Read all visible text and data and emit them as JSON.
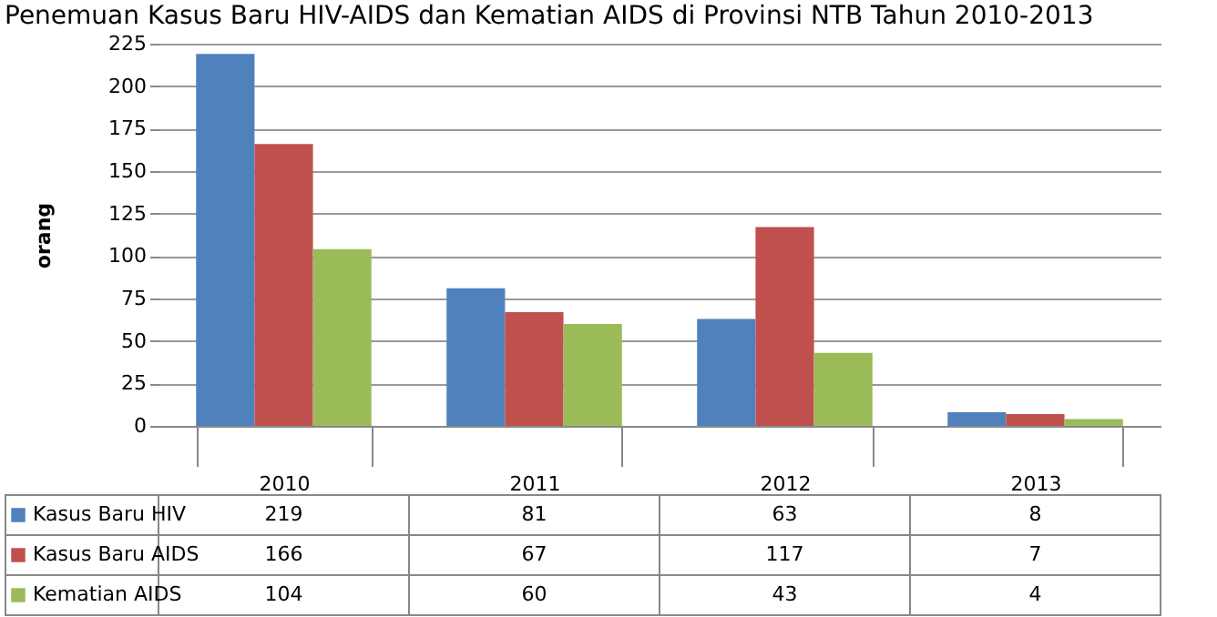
{
  "chart_data": {
    "type": "bar",
    "title": "Penemuan Kasus Baru HIV-AIDS dan Kematian AIDS di Provinsi NTB Tahun 2010-2013",
    "ylabel": "orang",
    "categories": [
      "2010",
      "2011",
      "2012",
      "2013"
    ],
    "series": [
      {
        "name": "Kasus Baru HIV",
        "color": "#4f81bd",
        "values": [
          219,
          81,
          63,
          8
        ]
      },
      {
        "name": "Kasus Baru AIDS",
        "color": "#c0504d",
        "values": [
          166,
          67,
          117,
          7
        ]
      },
      {
        "name": "Kematian AIDS",
        "color": "#9bbb59",
        "values": [
          104,
          60,
          43,
          4
        ]
      }
    ],
    "ylim": [
      0,
      225
    ],
    "yticks": [
      0,
      25,
      50,
      75,
      100,
      125,
      150,
      175,
      200,
      225
    ],
    "grid": "y",
    "data_labels": true,
    "legend": "bottom"
  }
}
